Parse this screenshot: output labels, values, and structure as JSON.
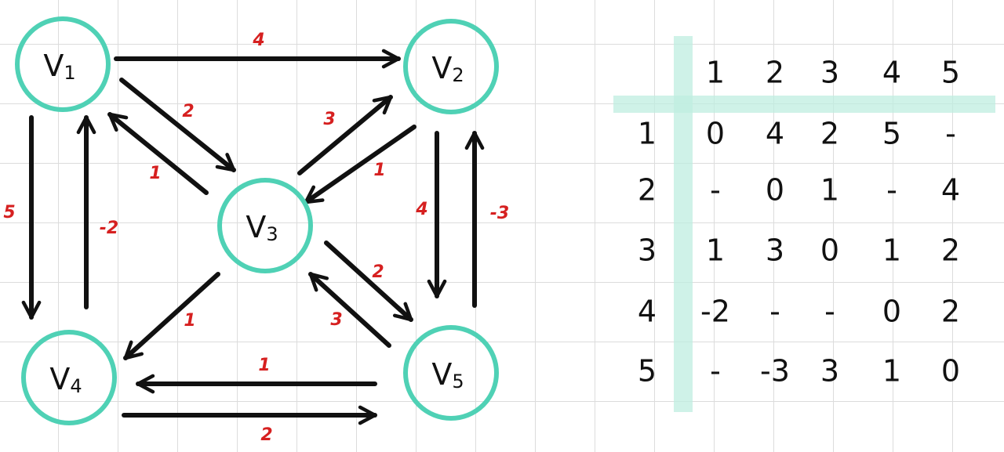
{
  "graph": {
    "node_color": "#4fd1b5",
    "edge_color": "#111111",
    "weight_color": "#d62020",
    "nodes": [
      {
        "id": "v1",
        "label": "V",
        "sub": "1"
      },
      {
        "id": "v2",
        "label": "V",
        "sub": "2"
      },
      {
        "id": "v3",
        "label": "V",
        "sub": "3"
      },
      {
        "id": "v4",
        "label": "V",
        "sub": "4"
      },
      {
        "id": "v5",
        "label": "V",
        "sub": "5"
      }
    ],
    "edges": [
      {
        "from": "v1",
        "to": "v2",
        "weight": "4"
      },
      {
        "from": "v1",
        "to": "v3",
        "weight": "2"
      },
      {
        "from": "v3",
        "to": "v1",
        "weight": "1"
      },
      {
        "from": "v3",
        "to": "v2",
        "weight": "3"
      },
      {
        "from": "v2",
        "to": "v3",
        "weight": "1"
      },
      {
        "from": "v1",
        "to": "v4",
        "weight": "5"
      },
      {
        "from": "v4",
        "to": "v1",
        "weight": "-2"
      },
      {
        "from": "v2",
        "to": "v5",
        "weight": "4"
      },
      {
        "from": "v5",
        "to": "v2",
        "weight": "-3"
      },
      {
        "from": "v3",
        "to": "v5",
        "weight": "2"
      },
      {
        "from": "v5",
        "to": "v3",
        "weight": "3"
      },
      {
        "from": "v3",
        "to": "v4",
        "weight": "1"
      },
      {
        "from": "v5",
        "to": "v4",
        "weight": "1"
      },
      {
        "from": "v4",
        "to": "v5",
        "weight": "2"
      }
    ]
  },
  "matrix": {
    "highlight_color": "#bfeee0",
    "col_headers": [
      "1",
      "2",
      "3",
      "4",
      "5"
    ],
    "row_headers": [
      "1",
      "2",
      "3",
      "4",
      "5"
    ],
    "rows": [
      [
        "0",
        "4",
        "2",
        "5",
        "-"
      ],
      [
        "-",
        "0",
        "1",
        "-",
        "4"
      ],
      [
        "1",
        "3",
        "0",
        "1",
        "2"
      ],
      [
        "-2",
        "-",
        "-",
        "0",
        "2"
      ],
      [
        "-",
        "-3",
        "3",
        "1",
        "0"
      ]
    ]
  }
}
